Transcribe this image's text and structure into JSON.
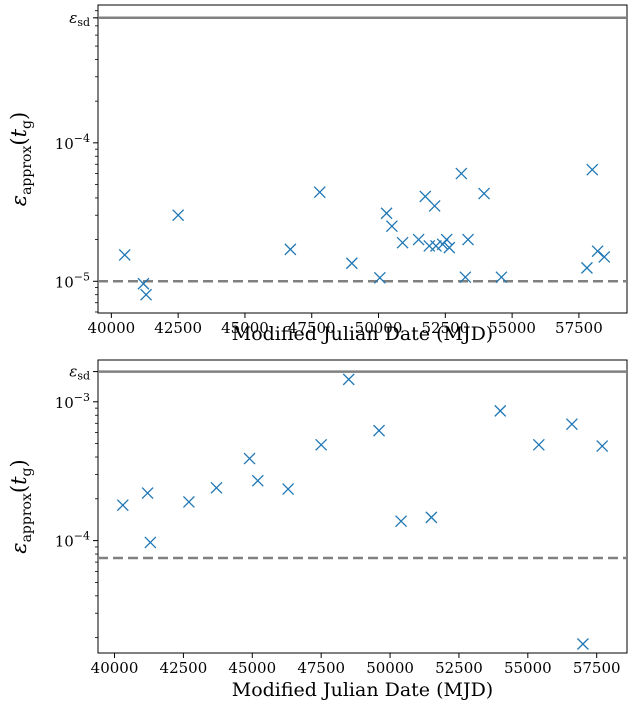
{
  "chart_data": [
    {
      "type": "scatter",
      "xlabel": "Modified Julian Date (MJD)",
      "ylabel": {
        "main": "ε",
        "sub": "approx",
        "arg": "t",
        "arg_sub": "g"
      },
      "yscale": "log",
      "xlim": [
        39500,
        59300
      ],
      "ylim": [
        5.9e-06,
        0.00099
      ],
      "xticks": [
        40000,
        42500,
        45000,
        47500,
        50000,
        52500,
        55000,
        57500
      ],
      "xtick_labels": [
        "40000",
        "42500",
        "45000",
        "47500",
        "50000",
        "52500",
        "55000",
        "57500"
      ],
      "yticks": [
        {
          "value": 1e-05,
          "base": "10",
          "exp": "−5"
        },
        {
          "value": 0.0001,
          "base": "10",
          "exp": "−4"
        }
      ],
      "eps_sd": {
        "value": 0.0008,
        "label": "ε",
        "label_sub": "sd",
        "style": "solid"
      },
      "threshold": {
        "value": 1e-05,
        "style": "dashed"
      },
      "marker": "x",
      "color": "#1f77b4",
      "points": [
        {
          "x": 40500,
          "y": 1.55e-05
        },
        {
          "x": 41200,
          "y": 9.6e-06
        },
        {
          "x": 41300,
          "y": 8e-06
        },
        {
          "x": 42500,
          "y": 3e-05
        },
        {
          "x": 46700,
          "y": 1.7e-05
        },
        {
          "x": 47800,
          "y": 4.4e-05
        },
        {
          "x": 49000,
          "y": 1.35e-05
        },
        {
          "x": 50050,
          "y": 1.06e-05
        },
        {
          "x": 50300,
          "y": 3.1e-05
        },
        {
          "x": 50500,
          "y": 2.5e-05
        },
        {
          "x": 50900,
          "y": 1.9e-05
        },
        {
          "x": 51500,
          "y": 2e-05
        },
        {
          "x": 51750,
          "y": 4.1e-05
        },
        {
          "x": 51900,
          "y": 1.8e-05
        },
        {
          "x": 52100,
          "y": 3.5e-05
        },
        {
          "x": 52150,
          "y": 1.8e-05
        },
        {
          "x": 52400,
          "y": 1.85e-05
        },
        {
          "x": 52550,
          "y": 2e-05
        },
        {
          "x": 52650,
          "y": 1.75e-05
        },
        {
          "x": 53100,
          "y": 6e-05
        },
        {
          "x": 53250,
          "y": 1.07e-05
        },
        {
          "x": 53350,
          "y": 2e-05
        },
        {
          "x": 53950,
          "y": 4.3e-05
        },
        {
          "x": 54600,
          "y": 1.07e-05
        },
        {
          "x": 57800,
          "y": 1.25e-05
        },
        {
          "x": 58000,
          "y": 6.4e-05
        },
        {
          "x": 58200,
          "y": 1.65e-05
        },
        {
          "x": 58450,
          "y": 1.5e-05
        }
      ]
    },
    {
      "type": "scatter",
      "xlabel": "Modified Julian Date (MJD)",
      "ylabel": {
        "main": "ε",
        "sub": "approx",
        "arg": "t",
        "arg_sub": "g"
      },
      "yscale": "log",
      "xlim": [
        39400,
        58600
      ],
      "ylim": [
        1.55e-05,
        0.002
      ],
      "xticks": [
        40000,
        42500,
        45000,
        47500,
        50000,
        52500,
        55000,
        57500
      ],
      "xtick_labels": [
        "40000",
        "42500",
        "45000",
        "47500",
        "50000",
        "52500",
        "55000",
        "57500"
      ],
      "yticks": [
        {
          "value": 0.0001,
          "base": "10",
          "exp": "−4"
        },
        {
          "value": 0.001,
          "base": "10",
          "exp": "−3"
        }
      ],
      "eps_sd": {
        "value": 0.00165,
        "label": "ε",
        "label_sub": "sd",
        "style": "solid"
      },
      "threshold": {
        "value": 7.5e-05,
        "style": "dashed"
      },
      "marker": "x",
      "color": "#1f77b4",
      "points": [
        {
          "x": 40300,
          "y": 0.00018
        },
        {
          "x": 41200,
          "y": 0.00022
        },
        {
          "x": 41300,
          "y": 9.7e-05
        },
        {
          "x": 42700,
          "y": 0.00019
        },
        {
          "x": 43700,
          "y": 0.00024
        },
        {
          "x": 44900,
          "y": 0.00039
        },
        {
          "x": 45200,
          "y": 0.00027
        },
        {
          "x": 46300,
          "y": 0.000235
        },
        {
          "x": 47500,
          "y": 0.00049
        },
        {
          "x": 48500,
          "y": 0.00145
        },
        {
          "x": 49600,
          "y": 0.00062
        },
        {
          "x": 50400,
          "y": 0.000138
        },
        {
          "x": 51500,
          "y": 0.000147
        },
        {
          "x": 54000,
          "y": 0.00086
        },
        {
          "x": 55400,
          "y": 0.00049
        },
        {
          "x": 56600,
          "y": 0.00069
        },
        {
          "x": 57000,
          "y": 1.8e-05
        },
        {
          "x": 57700,
          "y": 0.00048
        }
      ]
    }
  ]
}
